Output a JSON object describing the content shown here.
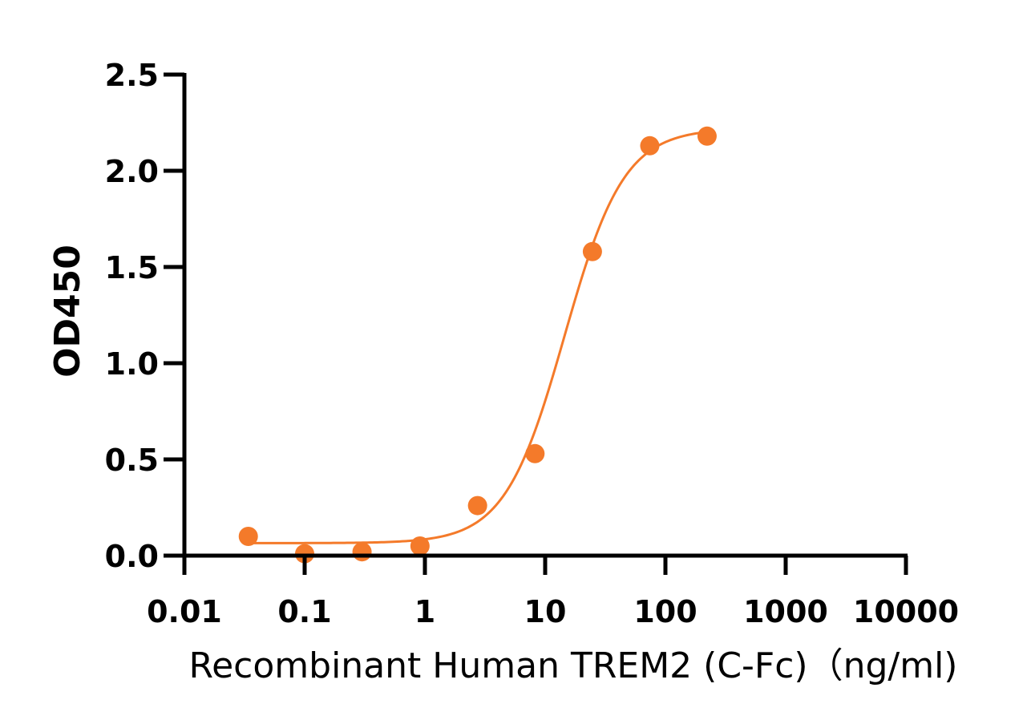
{
  "chart_data": {
    "type": "scatter",
    "title": "",
    "xlabel": "Recombinant Human TREM2 (C-Fc)（ng/ml)",
    "ylabel": "OD450",
    "x_scale": "log",
    "xlim": [
      0.01,
      10000
    ],
    "ylim": [
      0,
      2.5
    ],
    "x_ticks": [
      "0.01",
      "0.1",
      "1",
      "10",
      "100",
      "1000",
      "10000"
    ],
    "y_ticks": [
      "0.0",
      "0.5",
      "1.0",
      "1.5",
      "2.0",
      "2.5"
    ],
    "grid": false,
    "legend": "none",
    "series": [
      {
        "x": [
          0.034,
          0.1,
          0.3,
          0.91,
          2.74,
          8.23,
          24.7,
          74.1,
          222
        ],
        "y": [
          0.1,
          0.01,
          0.02,
          0.05,
          0.26,
          0.53,
          1.58,
          2.13,
          2.18
        ]
      }
    ],
    "fit_curve": {
      "model": "4PL",
      "bottom": 0.065,
      "top": 2.22,
      "ec50": 14.5,
      "hill": 1.75,
      "x_range": [
        0.034,
        222
      ]
    },
    "color": "#f47a2a"
  }
}
